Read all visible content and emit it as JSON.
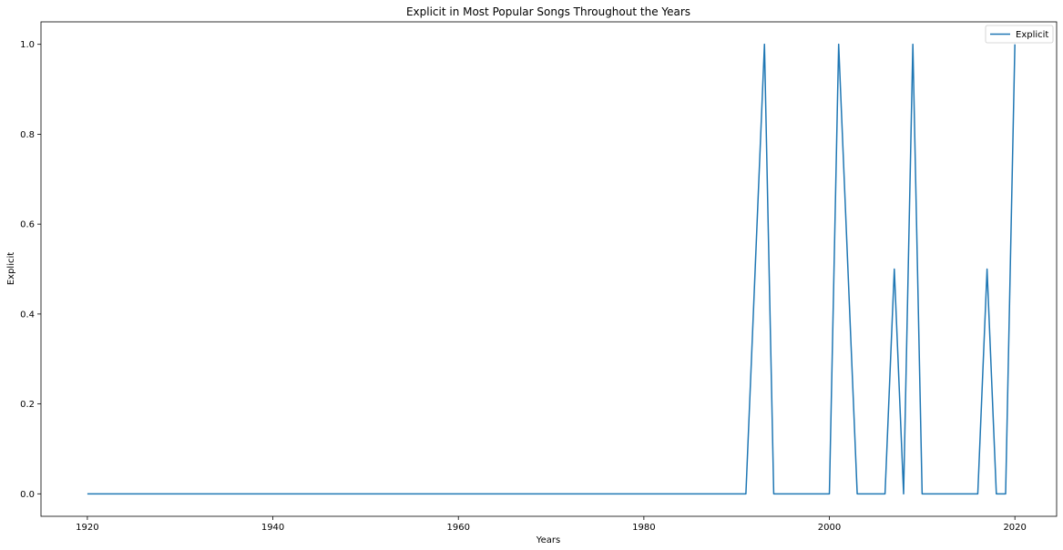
{
  "chart_data": {
    "type": "line",
    "title": "Explicit in Most Popular Songs Throughout the Years",
    "xlabel": "Years",
    "ylabel": "Explicit",
    "xlim": [
      1915,
      2024.5
    ],
    "ylim": [
      -0.05,
      1.05
    ],
    "x_ticks": [
      1920,
      1940,
      1960,
      1980,
      2000,
      2020
    ],
    "y_ticks": [
      0.0,
      0.2,
      0.4,
      0.6,
      0.8,
      1.0
    ],
    "y_tick_labels": [
      "0.0",
      "0.2",
      "0.4",
      "0.6",
      "0.8",
      "1.0"
    ],
    "grid": false,
    "legend_position": "top-right",
    "series": [
      {
        "name": "Explicit",
        "color": "#1f77b4",
        "x": [
          1920,
          1991,
          1993,
          1994,
          2000,
          2001,
          2003,
          2006,
          2007,
          2008,
          2009,
          2010,
          2016,
          2017,
          2018,
          2019,
          2020
        ],
        "y": [
          0,
          0,
          1,
          0,
          0,
          1,
          0,
          0,
          0.5,
          0,
          1,
          0,
          0,
          0.5,
          0,
          0,
          1
        ]
      }
    ]
  }
}
